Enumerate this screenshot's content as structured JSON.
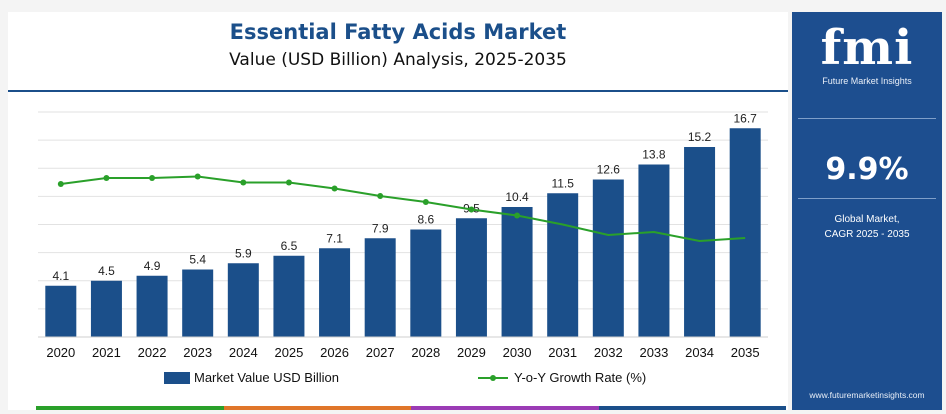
{
  "header": {
    "title": "Essential Fatty Acids Market",
    "subtitle": "Value (USD Billion) Analysis, 2025-2035"
  },
  "sidebar": {
    "logo_text": "fmi",
    "logo_subtitle": "Future Market Insights",
    "cagr_value": "9.9%",
    "cagr_label_line1": "Global Market,",
    "cagr_label_line2": "CAGR 2025 - 2035",
    "website": "www.futuremarketinsights.com"
  },
  "colors": {
    "bar": "#1b4f8a",
    "line": "#2aa02a",
    "sidebar_bg": "#1d4e8f",
    "stripe": [
      "#2aa02a",
      "#e0762a",
      "#9b3bb5",
      "#1b4f8a"
    ]
  },
  "chart_data": {
    "type": "bar",
    "categories": [
      "2020",
      "2021",
      "2022",
      "2023",
      "2024",
      "2025",
      "2026",
      "2027",
      "2028",
      "2029",
      "2030",
      "2031",
      "2032",
      "2033",
      "2034",
      "2035"
    ],
    "series": [
      {
        "name": "Market Value USD Billion",
        "type": "bar",
        "values": [
          4.1,
          4.5,
          4.9,
          5.4,
          5.9,
          6.5,
          7.1,
          7.9,
          8.6,
          9.5,
          10.4,
          11.5,
          12.6,
          13.8,
          15.2,
          16.7
        ],
        "data_labels": [
          "4.1",
          "4.5",
          "4.9",
          "5.4",
          "5.9",
          "6.5",
          "7.1",
          "7.9",
          "8.6",
          "9.5",
          "10.4",
          "11.5",
          "12.6",
          "13.8",
          "15.2",
          "16.7"
        ]
      },
      {
        "name": "Y-o-Y Growth Rate (%)",
        "type": "line",
        "values": [
          10.2,
          10.6,
          10.6,
          10.7,
          10.3,
          10.3,
          9.9,
          9.4,
          9.0,
          8.5,
          8.1,
          7.5,
          6.8,
          7.0,
          6.4,
          6.6
        ]
      }
    ],
    "ylim": [
      0,
      18
    ],
    "y2lim": [
      0,
      15
    ],
    "grid": true,
    "legend_position": "bottom",
    "xlabel": "",
    "ylabel": ""
  }
}
